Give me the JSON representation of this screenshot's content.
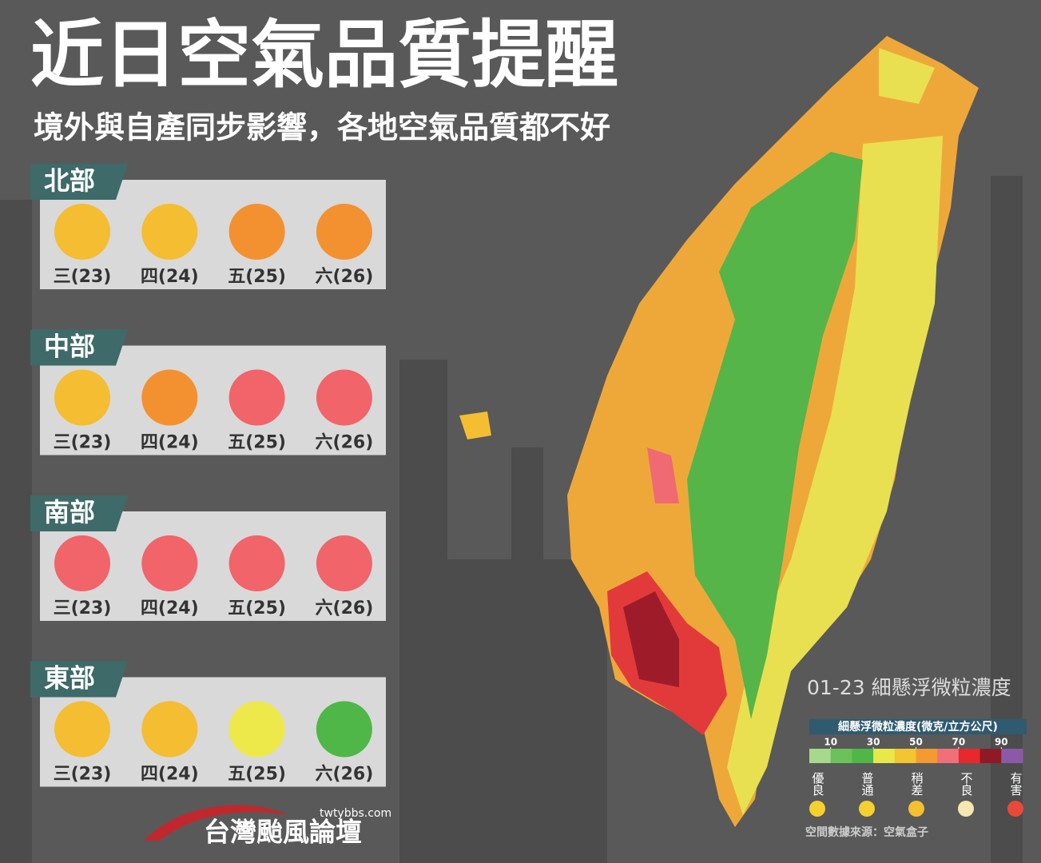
{
  "title": "近日空氣品質提醒",
  "subtitle": "境外與自產同步影響，各地空氣品質都不好",
  "regions": [
    {
      "name": "北部",
      "days": [
        {
          "label": "三(23)",
          "color": "#f4bd32"
        },
        {
          "label": "四(24)",
          "color": "#f4bd32"
        },
        {
          "label": "五(25)",
          "color": "#f39130"
        },
        {
          "label": "六(26)",
          "color": "#f39130"
        }
      ]
    },
    {
      "name": "中部",
      "days": [
        {
          "label": "三(23)",
          "color": "#f4bd32"
        },
        {
          "label": "四(24)",
          "color": "#f39130"
        },
        {
          "label": "五(25)",
          "color": "#f0646a"
        },
        {
          "label": "六(26)",
          "color": "#f0646a"
        }
      ]
    },
    {
      "name": "南部",
      "days": [
        {
          "label": "三(23)",
          "color": "#f0646a"
        },
        {
          "label": "四(24)",
          "color": "#f0646a"
        },
        {
          "label": "五(25)",
          "color": "#f0646a"
        },
        {
          "label": "六(26)",
          "color": "#f0646a"
        }
      ]
    },
    {
      "name": "東部",
      "days": [
        {
          "label": "三(23)",
          "color": "#f4bd32"
        },
        {
          "label": "四(24)",
          "color": "#f4bd32"
        },
        {
          "label": "五(25)",
          "color": "#ede94a"
        },
        {
          "label": "六(26)",
          "color": "#4eb748"
        }
      ]
    }
  ],
  "map": {
    "caption": "01-23 細懸浮微粒濃度",
    "source": "空間數據來源：空氣盒子"
  },
  "legend": {
    "title": "細懸浮微粒濃度(微克/立方公尺)",
    "range": [
      0,
      100
    ],
    "ticks": [
      10,
      30,
      50,
      70,
      90
    ],
    "colors": [
      "#a6d98c",
      "#6cc25a",
      "#4eb748",
      "#e9e84a",
      "#f4c530",
      "#f39a30",
      "#f0707a",
      "#e8282a",
      "#8e1a26",
      "#8a5aa8"
    ],
    "levels": [
      "優良",
      "普通",
      "稍差",
      "不良",
      "有害"
    ]
  },
  "logo": {
    "name": "台灣颱風論壇",
    "url": "twtybbs.com"
  }
}
